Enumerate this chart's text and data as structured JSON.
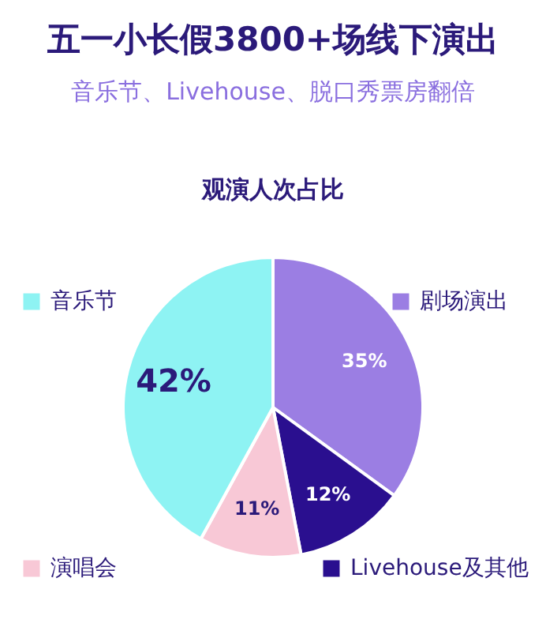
{
  "chart_data": {
    "type": "pie",
    "title": "五一小长假3800+场线下演出",
    "subtitle": "音乐节、Livehouse、脱口秀票房翻倍",
    "annotations": [
      "观演人次占比"
    ],
    "categories": [
      "剧场演出",
      "Livehouse及其他",
      "演唱会",
      "音乐节"
    ],
    "values": [
      35,
      12,
      11,
      42
    ],
    "colors": [
      "#9b7ee3",
      "#2a0f8f",
      "#f8c8d6",
      "#8ef3f3"
    ],
    "value_labels": [
      "35%",
      "12%",
      "11%",
      "42%"
    ],
    "legend": "bottom"
  }
}
